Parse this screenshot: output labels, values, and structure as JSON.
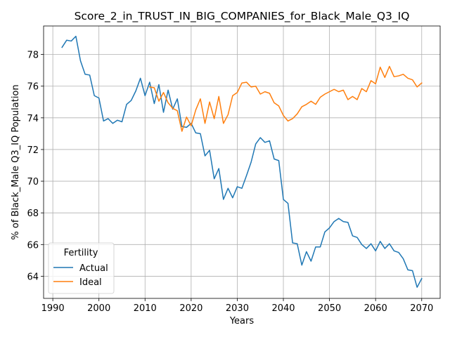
{
  "chart_data": {
    "type": "line",
    "title": "Score_2_in_TRUST_IN_BIG_COMPANIES_for_Black_Male_Q3_IQ",
    "xlabel": "Years",
    "ylabel": "% of Black_Male Q3_IQ Population",
    "xlim": [
      1988,
      2074
    ],
    "ylim": [
      62.6,
      79.8
    ],
    "xticks": [
      1990,
      2000,
      2010,
      2020,
      2030,
      2040,
      2050,
      2060,
      2070
    ],
    "yticks": [
      64,
      66,
      68,
      70,
      72,
      74,
      76,
      78
    ],
    "grid": true,
    "legend": {
      "title": "Fertility",
      "placement": "lower-left"
    },
    "series": [
      {
        "name": "Actual",
        "color": "#1f77b4",
        "x": [
          1992,
          1993,
          1994,
          1995,
          1996,
          1997,
          1998,
          1999,
          2000,
          2001,
          2002,
          2003,
          2004,
          2005,
          2006,
          2007,
          2008,
          2009,
          2010,
          2011,
          2012,
          2013,
          2014,
          2015,
          2016,
          2017,
          2018,
          2019,
          2020,
          2021,
          2022,
          2023,
          2024,
          2025,
          2026,
          2027,
          2028,
          2029,
          2030,
          2031,
          2032,
          2033,
          2034,
          2035,
          2036,
          2037,
          2038,
          2039,
          2040,
          2041,
          2042,
          2043,
          2044,
          2045,
          2046,
          2047,
          2048,
          2049,
          2050,
          2051,
          2052,
          2053,
          2054,
          2055,
          2056,
          2057,
          2058,
          2059,
          2060,
          2061,
          2062,
          2063,
          2064,
          2065,
          2066,
          2067,
          2068,
          2069,
          2070
        ],
        "y": [
          78.45,
          78.9,
          78.85,
          79.15,
          77.6,
          76.75,
          76.7,
          75.4,
          75.25,
          73.8,
          73.95,
          73.65,
          73.85,
          73.75,
          74.85,
          75.1,
          75.7,
          76.5,
          75.4,
          76.25,
          74.9,
          76.1,
          74.35,
          75.75,
          74.55,
          75.2,
          73.45,
          73.4,
          73.65,
          73.05,
          73.0,
          71.6,
          71.95,
          70.15,
          70.8,
          68.85,
          69.55,
          68.95,
          69.65,
          69.55,
          70.35,
          71.2,
          72.35,
          72.75,
          72.45,
          72.55,
          71.4,
          71.3,
          68.85,
          68.6,
          66.1,
          66.05,
          64.7,
          65.55,
          64.95,
          65.85,
          65.85,
          66.8,
          67.05,
          67.45,
          67.65,
          67.45,
          67.4,
          66.55,
          66.45,
          66.0,
          65.75,
          66.05,
          65.6,
          66.2,
          65.75,
          66.05,
          65.6,
          65.5,
          65.1,
          64.4,
          64.35,
          63.3,
          63.85
        ]
      },
      {
        "name": "Ideal",
        "color": "#ff7f0e",
        "x": [
          2011,
          2012,
          2013,
          2014,
          2015,
          2016,
          2017,
          2018,
          2019,
          2020,
          2021,
          2022,
          2023,
          2024,
          2025,
          2026,
          2027,
          2028,
          2029,
          2030,
          2031,
          2032,
          2033,
          2034,
          2035,
          2036,
          2037,
          2038,
          2039,
          2040,
          2041,
          2042,
          2043,
          2044,
          2045,
          2046,
          2047,
          2048,
          2049,
          2050,
          2051,
          2052,
          2053,
          2054,
          2055,
          2056,
          2057,
          2058,
          2059,
          2060,
          2061,
          2062,
          2063,
          2064,
          2065,
          2066,
          2067,
          2068,
          2069,
          2070
        ],
        "y": [
          75.95,
          75.9,
          75.05,
          75.6,
          74.95,
          74.6,
          74.45,
          73.15,
          74.05,
          73.5,
          74.5,
          75.2,
          73.65,
          75.0,
          73.95,
          75.35,
          73.65,
          74.2,
          75.4,
          75.6,
          76.2,
          76.25,
          75.95,
          76.0,
          75.5,
          75.65,
          75.55,
          74.95,
          74.75,
          74.15,
          73.8,
          73.95,
          74.25,
          74.7,
          74.85,
          75.05,
          74.85,
          75.3,
          75.5,
          75.65,
          75.8,
          75.65,
          75.75,
          75.15,
          75.35,
          75.15,
          75.85,
          75.65,
          76.35,
          76.15,
          77.2,
          76.55,
          77.25,
          76.6,
          76.65,
          76.75,
          76.5,
          76.4,
          75.95,
          76.2
        ]
      }
    ]
  }
}
